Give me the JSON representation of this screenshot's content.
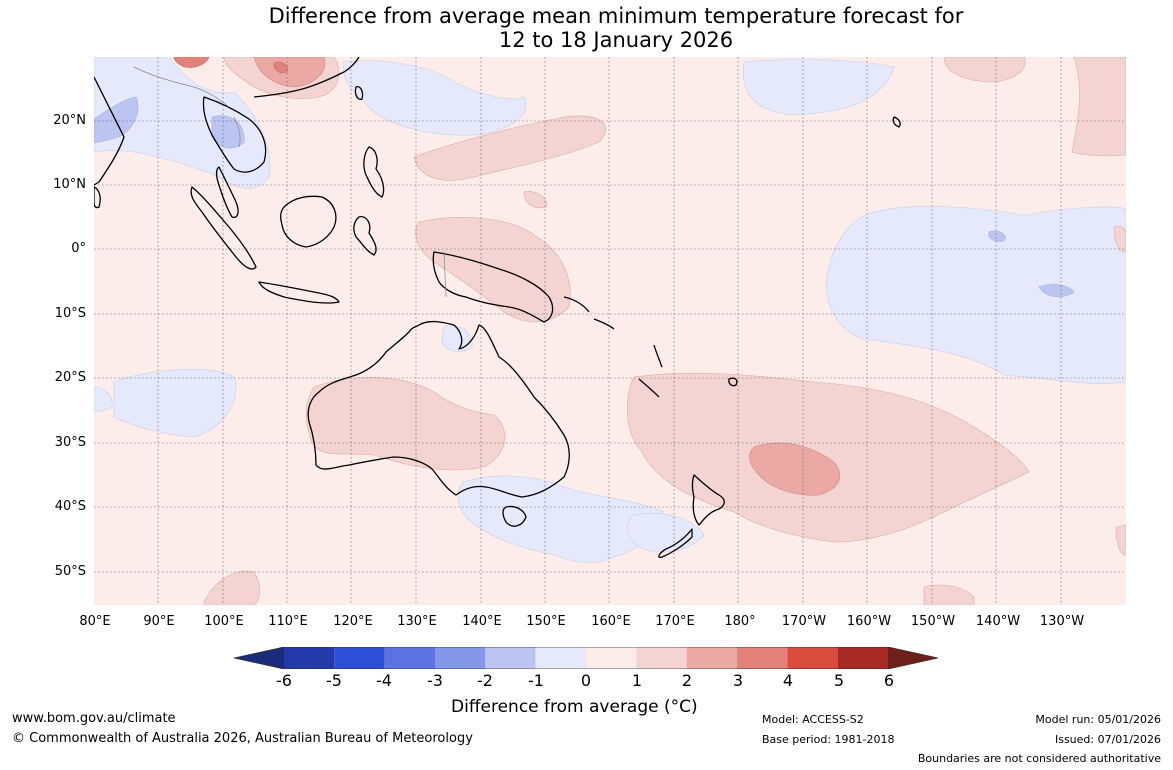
{
  "title": {
    "line1": "Difference from average mean minimum temperature forecast for",
    "line2": "12 to 18 January 2026"
  },
  "map": {
    "lat_labels": [
      "20°N",
      "10°N",
      "0°",
      "10°S",
      "20°S",
      "30°S",
      "40°S",
      "50°S"
    ],
    "lon_labels": [
      "80°E",
      "90°E",
      "100°E",
      "110°E",
      "120°E",
      "130°E",
      "140°E",
      "150°E",
      "160°E",
      "170°E",
      "180°",
      "170°W",
      "160°W",
      "150°W",
      "140°W",
      "130°W"
    ]
  },
  "colorbar": {
    "ticks": [
      "-6",
      "-5",
      "-4",
      "-3",
      "-2",
      "-1",
      "0",
      "1",
      "2",
      "3",
      "4",
      "5",
      "6"
    ],
    "colors": [
      "#233aa8",
      "#2f4ed8",
      "#5c72e2",
      "#8597e8",
      "#bcc5f2",
      "#e6e9fb",
      "#fcecea",
      "#f3d4d2",
      "#eaa9a4",
      "#e2827b",
      "#d94b3d",
      "#a72a24"
    ],
    "low_extend_color": "#1a2b7a",
    "high_extend_color": "#6e1f1a",
    "label": "Difference from average (°C)"
  },
  "footer": {
    "website": "www.bom.gov.au/climate",
    "copyright": "© Commonwealth of Australia 2026, Australian Bureau of Meteorology",
    "model": "Model: ACCESS-S2",
    "base_period": "Base period: 1981-2018",
    "model_run": "Model run: 05/01/2026",
    "issued": "Issued: 07/01/2026",
    "disclaimer": "Boundaries are not considered authoritative"
  }
}
